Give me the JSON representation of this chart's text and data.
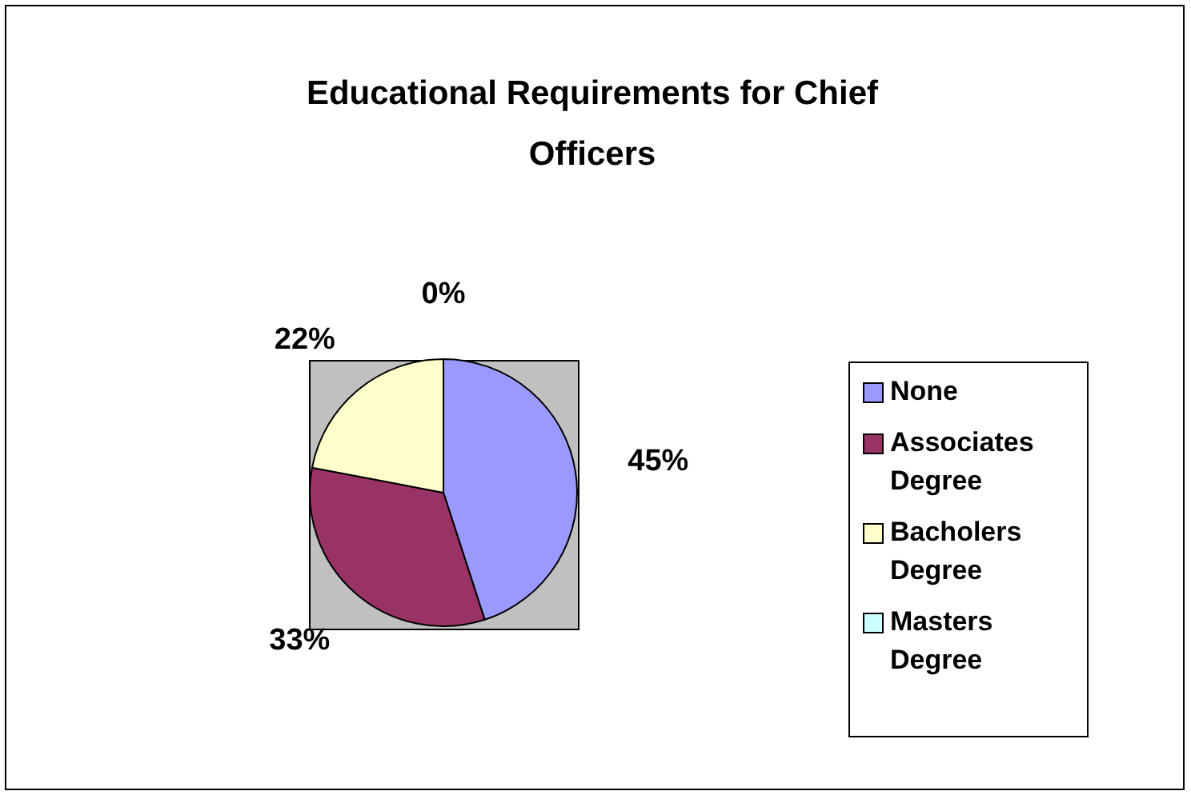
{
  "chart_data": {
    "type": "pie",
    "title": "Educational Requirements for Chief Officers",
    "categories": [
      "None",
      "Associates Degree",
      "Bacholers Degree",
      "Masters Degree"
    ],
    "values": [
      45,
      33,
      22,
      0
    ],
    "colors": [
      "#9999ff",
      "#993366",
      "#ffffcc",
      "#ccffff"
    ],
    "value_labels": [
      "45%",
      "33%",
      "22%",
      "0%"
    ],
    "legend": "right"
  }
}
